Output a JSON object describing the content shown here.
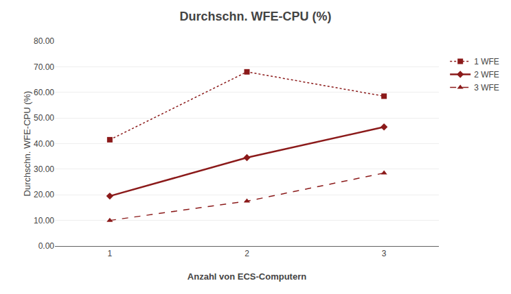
{
  "chart_data": {
    "type": "line",
    "title": "Durchschn. WFE-CPU (%)",
    "xlabel": "Anzahl von ECS-Computern",
    "ylabel": "Durchschn. WFE-CPU (%)",
    "x": [
      1,
      2,
      3
    ],
    "series": [
      {
        "name": "1 WFE",
        "color": "#8B1A1A",
        "values": [
          41.5,
          68.0,
          58.5
        ],
        "marker": "square",
        "line_style": "dotted"
      },
      {
        "name": "2 WFE",
        "color": "#8B1A1A",
        "values": [
          19.5,
          34.5,
          46.5
        ],
        "marker": "diamond",
        "line_style": "solid"
      },
      {
        "name": "3 WFE",
        "color": "#8B1A1A",
        "values": [
          10.0,
          17.5,
          28.5
        ],
        "marker": "triangle-up",
        "line_style": "dashed"
      }
    ],
    "xlim": [
      0.6,
      3.4
    ],
    "xticks": [
      1,
      2,
      3
    ],
    "ylim": [
      0,
      80
    ],
    "yticks": [
      {
        "value": 0,
        "label": "0.00"
      },
      {
        "value": 10,
        "label": "10.00"
      },
      {
        "value": 20,
        "label": "20.00"
      },
      {
        "value": 30,
        "label": "30.00"
      },
      {
        "value": 40,
        "label": "40.00"
      },
      {
        "value": 50,
        "label": "50.00"
      },
      {
        "value": 60,
        "label": "60.00"
      },
      {
        "value": 70,
        "label": "70.00"
      },
      {
        "value": 80,
        "label": "80.00"
      }
    ],
    "grid": "y",
    "legend": "right"
  }
}
